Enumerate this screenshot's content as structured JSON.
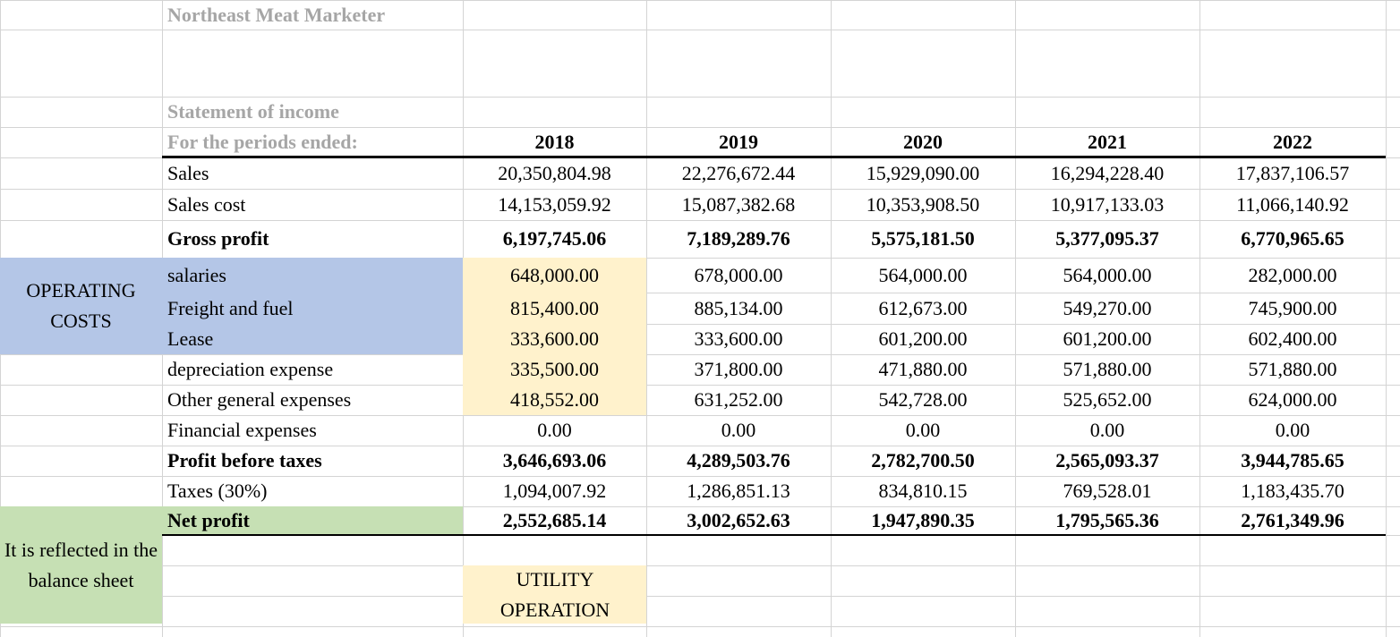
{
  "title": "Northeast Meat Marketer",
  "statement_title": "Statement of income",
  "period_label": "For the periods ended:",
  "years": [
    "2018",
    "2019",
    "2020",
    "2021",
    "2022"
  ],
  "rows": [
    {
      "label": "Sales",
      "values": [
        "20,350,804.98",
        "22,276,672.44",
        "15,929,090.00",
        "16,294,228.40",
        "17,837,106.57"
      ]
    },
    {
      "label": "Sales cost",
      "values": [
        "14,153,059.92",
        "15,087,382.68",
        "10,353,908.50",
        "10,917,133.03",
        "11,066,140.92"
      ]
    },
    {
      "label": "Gross profit",
      "values": [
        "6,197,745.06",
        "7,189,289.76",
        "5,575,181.50",
        "5,377,095.37",
        "6,770,965.65"
      ]
    },
    {
      "label": "salaries",
      "values": [
        "648,000.00",
        "678,000.00",
        "564,000.00",
        "564,000.00",
        "282,000.00"
      ]
    },
    {
      "label": "Freight and fuel",
      "values": [
        "815,400.00",
        "885,134.00",
        "612,673.00",
        "549,270.00",
        "745,900.00"
      ]
    },
    {
      "label": "Lease",
      "values": [
        "333,600.00",
        "333,600.00",
        "601,200.00",
        "601,200.00",
        "602,400.00"
      ]
    },
    {
      "label": "depreciation expense",
      "values": [
        "335,500.00",
        "371,800.00",
        "471,880.00",
        "571,880.00",
        "571,880.00"
      ]
    },
    {
      "label": "Other general expenses",
      "values": [
        "418,552.00",
        "631,252.00",
        "542,728.00",
        "525,652.00",
        "624,000.00"
      ]
    },
    {
      "label": "Financial expenses",
      "values": [
        "0.00",
        "0.00",
        "0.00",
        "0.00",
        "0.00"
      ]
    },
    {
      "label": "Profit before taxes",
      "values": [
        "3,646,693.06",
        "4,289,503.76",
        "2,782,700.50",
        "2,565,093.37",
        "3,944,785.65"
      ]
    },
    {
      "label": "Taxes (30%)",
      "values": [
        "1,094,007.92",
        "1,286,851.13",
        "834,810.15",
        "769,528.01",
        "1,183,435.70"
      ]
    },
    {
      "label": "Net profit",
      "values": [
        "2,552,685.14",
        "3,002,652.63",
        "1,947,890.35",
        "1,795,565.36",
        "2,761,349.96"
      ]
    }
  ],
  "operating_costs_label": "OPERATING COSTS",
  "balance_sheet_note": "It is reflected in the balance sheet",
  "utility_note": "UTILITY OPERATION"
}
